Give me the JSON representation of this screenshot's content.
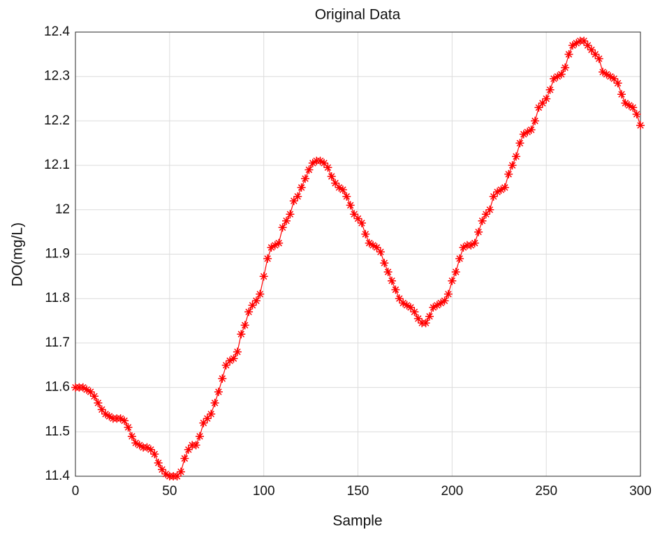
{
  "chart_data": {
    "type": "line",
    "title": "Original Data",
    "x_label": "Sample",
    "y_label": "DO(mg/L)",
    "color": "#ff0000",
    "grid": true,
    "xlim": [
      0,
      300
    ],
    "xticks": [
      0,
      50,
      100,
      150,
      200,
      250,
      300
    ],
    "ylim": [
      11.4,
      12.4
    ],
    "yticks": [
      11.4,
      11.5,
      11.6,
      11.7,
      11.8,
      11.9,
      12,
      12.1,
      12.2,
      12.3,
      12.4
    ],
    "x": [
      0,
      2,
      4,
      6,
      8,
      10,
      12,
      14,
      16,
      18,
      20,
      22,
      24,
      26,
      28,
      30,
      32,
      34,
      36,
      38,
      40,
      42,
      44,
      46,
      48,
      50,
      52,
      54,
      56,
      58,
      60,
      62,
      64,
      66,
      68,
      70,
      72,
      74,
      76,
      78,
      80,
      82,
      84,
      86,
      88,
      90,
      92,
      94,
      96,
      98,
      100,
      102,
      104,
      106,
      108,
      110,
      112,
      114,
      116,
      118,
      120,
      122,
      124,
      126,
      128,
      130,
      132,
      134,
      136,
      138,
      140,
      142,
      144,
      146,
      148,
      150,
      152,
      154,
      156,
      158,
      160,
      162,
      164,
      166,
      168,
      170,
      172,
      174,
      176,
      178,
      180,
      182,
      184,
      186,
      188,
      190,
      192,
      194,
      196,
      198,
      200,
      202,
      204,
      206,
      208,
      210,
      212,
      214,
      216,
      218,
      220,
      222,
      224,
      226,
      228,
      230,
      232,
      234,
      236,
      238,
      240,
      242,
      244,
      246,
      248,
      250,
      252,
      254,
      256,
      258,
      260,
      262,
      264,
      266,
      268,
      270,
      272,
      274,
      276,
      278,
      280,
      282,
      284,
      286,
      288,
      290,
      292,
      294,
      296,
      298,
      300
    ],
    "values": [
      11.6,
      11.6,
      11.6,
      11.595,
      11.59,
      11.58,
      11.565,
      11.55,
      11.54,
      11.535,
      11.53,
      11.53,
      11.53,
      11.525,
      11.51,
      11.49,
      11.475,
      11.47,
      11.465,
      11.465,
      11.46,
      11.45,
      11.43,
      11.415,
      11.405,
      11.4,
      11.4,
      11.4,
      11.41,
      11.44,
      11.46,
      11.47,
      11.47,
      11.49,
      11.52,
      11.53,
      11.54,
      11.565,
      11.59,
      11.62,
      11.65,
      11.66,
      11.665,
      11.68,
      11.72,
      11.74,
      11.77,
      11.785,
      11.795,
      11.81,
      11.85,
      11.89,
      11.915,
      11.92,
      11.925,
      11.96,
      11.975,
      11.99,
      12.02,
      12.03,
      12.05,
      12.07,
      12.09,
      12.105,
      12.11,
      12.11,
      12.105,
      12.095,
      12.075,
      12.06,
      12.05,
      12.045,
      12.03,
      12.01,
      11.99,
      11.98,
      11.97,
      11.945,
      11.925,
      11.92,
      11.915,
      11.905,
      11.88,
      11.86,
      11.84,
      11.82,
      11.8,
      11.79,
      11.785,
      11.78,
      11.77,
      11.755,
      11.745,
      11.745,
      11.76,
      11.78,
      11.785,
      11.79,
      11.795,
      11.81,
      11.84,
      11.86,
      11.89,
      11.915,
      11.92,
      11.92,
      11.925,
      11.95,
      11.975,
      11.99,
      12.0,
      12.03,
      12.04,
      12.045,
      12.05,
      12.08,
      12.1,
      12.12,
      12.15,
      12.17,
      12.175,
      12.18,
      12.2,
      12.23,
      12.24,
      12.25,
      12.27,
      12.295,
      12.3,
      12.305,
      12.32,
      12.35,
      12.37,
      12.375,
      12.38,
      12.38,
      12.37,
      12.36,
      12.35,
      12.34,
      12.31,
      12.305,
      12.3,
      12.295,
      12.285,
      12.26,
      12.24,
      12.235,
      12.23,
      12.215,
      12.19
    ]
  }
}
